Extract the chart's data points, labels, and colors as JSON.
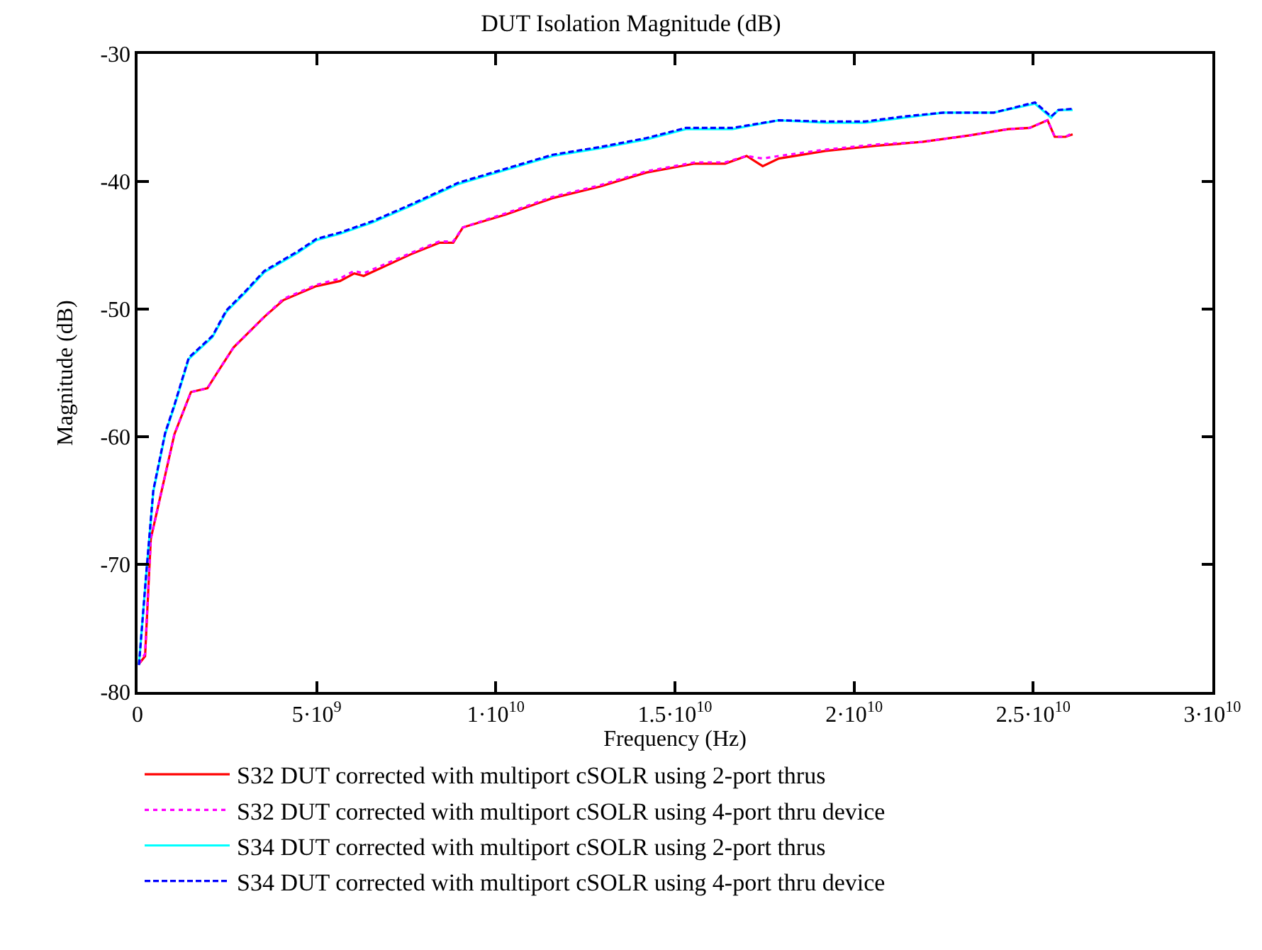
{
  "chart_data": {
    "type": "line",
    "title": "DUT Isolation Magnitude (dB)",
    "xlabel": "Frequency (Hz)",
    "ylabel": "Magnitude (dB)",
    "xlim": [
      0,
      30000000000.0
    ],
    "ylim": [
      -80,
      -30
    ],
    "xticks": [
      0,
      {
        "value": 5000000000.0,
        "label": "5·10$^{9}$"
      },
      {
        "value": 10000000000.0,
        "label": "1·10$^{10}$"
      },
      {
        "value": 15000000000.0,
        "label": "1.5·10$^{10}$"
      },
      {
        "value": 20000000000.0,
        "label": "2·10$^{10}$"
      },
      {
        "value": 25000000000.0,
        "label": "2.5·10$^{10}$"
      },
      {
        "value": 30000000000.0,
        "label": "3·10$^{10}$"
      }
    ],
    "yticks": [
      -80,
      -70,
      -60,
      -50,
      -40,
      -30
    ],
    "grid": false,
    "legend": "bottom",
    "marker": "none",
    "x": [
      40000000.0,
      210000000.0,
      370000000.0,
      700000000.0,
      1030000000.0,
      1490000000.0,
      1950000000.0,
      2220000000.0,
      2680000000.0,
      3540000000.0,
      4070000000.0,
      4990000000.0,
      5650000000.0,
      6050000000.0,
      6310000000.0,
      7630000000.0,
      8420000000.0,
      8810000000.0,
      9080000000.0,
      10270000000.0,
      11590000000.0,
      12900000000.0,
      14200000000.0,
      15550000000.0,
      16400000000.0,
      17000000000.0,
      17450000000.0,
      17900000000.0,
      19200000000.0,
      20600000000.0,
      21900000000.0,
      23200000000.0,
      24300000000.0,
      24900000000.0,
      25400000000.0,
      25600000000.0,
      25900000000.0,
      26100000000.0
    ],
    "series": [
      {
        "name": "S32 DUT corrected with multiport cSOLR using 2-port thrus",
        "color": "#ff0000",
        "line_style": "solid",
        "values": [
          -77.8,
          -77.2,
          -68.0,
          -63.9,
          -59.8,
          -56.5,
          -56.2,
          -55.0,
          -53.0,
          -50.6,
          -49.3,
          -48.2,
          -47.8,
          -47.2,
          -47.4,
          -45.7,
          -44.8,
          -44.8,
          -43.6,
          -42.6,
          -41.3,
          -40.4,
          -39.3,
          -38.6,
          -38.6,
          -38.0,
          -38.8,
          -38.2,
          -37.6,
          -37.2,
          -36.9,
          -36.4,
          -35.9,
          -35.8,
          -35.2,
          -36.5,
          -36.5,
          -36.3
        ]
      },
      {
        "name": "S32 DUT corrected with multiport cSOLR using 4-port thru device",
        "color": "#ff00ff",
        "line_style": "dotted",
        "values": [
          -77.8,
          -77.0,
          -68.0,
          -63.9,
          -59.8,
          -56.5,
          -56.2,
          -55.0,
          -53.0,
          -50.6,
          -49.2,
          -48.1,
          -47.6,
          -47.0,
          -47.2,
          -45.6,
          -44.7,
          -44.7,
          -43.6,
          -42.5,
          -41.2,
          -40.3,
          -39.2,
          -38.5,
          -38.5,
          -38.0,
          -38.2,
          -38.0,
          -37.5,
          -37.1,
          -36.9,
          -36.4,
          -35.9,
          -35.8,
          -35.2,
          -36.5,
          -36.5,
          -36.2
        ]
      },
      {
        "name": "S34 DUT corrected with multiport cSOLR using 2-port thrus",
        "color": "#00ffff",
        "line_style": "solid",
        "x": [
          40000000.0,
          240000000.0,
          440000000.0,
          770000000.0,
          1030000000.0,
          1430000000.0,
          2090000000.0,
          2480000000.0,
          3010000000.0,
          3540000000.0,
          4460000000.0,
          4990000000.0,
          5650000000.0,
          6570000000.0,
          7630000000.0,
          8950000000.0,
          10270000000.0,
          11590000000.0,
          12900000000.0,
          14200000000.0,
          15300000000.0,
          16600000000.0,
          17900000000.0,
          19200000000.0,
          20300000000.0,
          21400000000.0,
          22500000000.0,
          23900000000.0,
          25050000000.0,
          25500000000.0,
          25700000000.0,
          26100000000.0
        ],
        "values": [
          -77.8,
          -70.9,
          -64.3,
          -59.8,
          -57.6,
          -53.9,
          -52.2,
          -50.2,
          -48.7,
          -47.1,
          -45.6,
          -44.6,
          -44.1,
          -43.2,
          -41.9,
          -40.2,
          -39.1,
          -38.0,
          -37.4,
          -36.7,
          -35.9,
          -35.9,
          -35.2,
          -35.4,
          -35.4,
          -35.0,
          -34.6,
          -34.6,
          -33.9,
          -35.0,
          -34.4,
          -34.4
        ]
      },
      {
        "name": "S34 DUT corrected with multiport cSOLR using 4-port thru device",
        "color": "#0000ff",
        "line_style": "dashed",
        "x": [
          40000000.0,
          240000000.0,
          440000000.0,
          770000000.0,
          1030000000.0,
          1430000000.0,
          2090000000.0,
          2480000000.0,
          3010000000.0,
          3540000000.0,
          4460000000.0,
          4990000000.0,
          5650000000.0,
          6570000000.0,
          7630000000.0,
          8950000000.0,
          10270000000.0,
          11590000000.0,
          12900000000.0,
          14200000000.0,
          15300000000.0,
          16600000000.0,
          17900000000.0,
          19200000000.0,
          20300000000.0,
          21400000000.0,
          22500000000.0,
          23900000000.0,
          25050000000.0,
          25500000000.0,
          25700000000.0,
          26100000000.0
        ],
        "values": [
          -77.9,
          -70.8,
          -64.2,
          -59.7,
          -57.5,
          -53.8,
          -52.1,
          -50.1,
          -48.6,
          -47.0,
          -45.5,
          -44.5,
          -44.0,
          -43.1,
          -41.8,
          -40.1,
          -39.0,
          -37.9,
          -37.3,
          -36.6,
          -35.8,
          -35.8,
          -35.2,
          -35.3,
          -35.3,
          -34.9,
          -34.6,
          -34.6,
          -33.8,
          -34.9,
          -34.4,
          -34.3
        ]
      }
    ]
  }
}
